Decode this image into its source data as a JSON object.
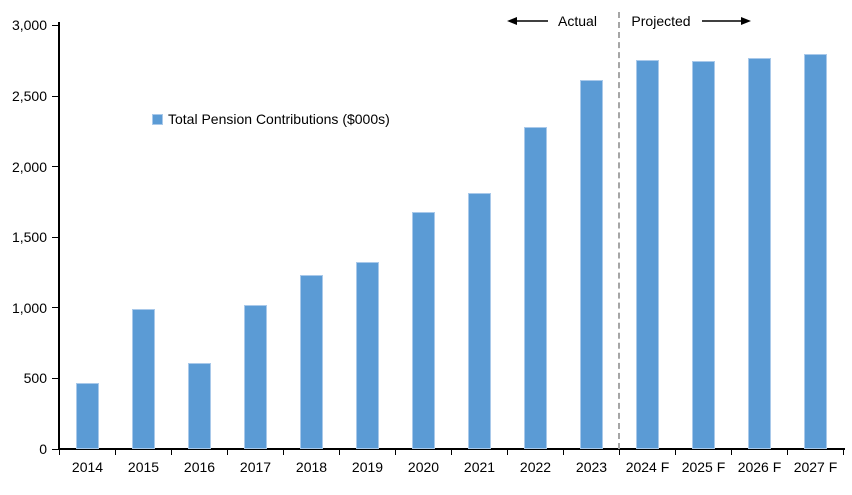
{
  "chart_data": {
    "type": "bar",
    "title": "",
    "legend": "Total Pension Contributions ($000s)",
    "categories": [
      "2014",
      "2015",
      "2016",
      "2017",
      "2018",
      "2019",
      "2020",
      "2021",
      "2022",
      "2023",
      "2024 F",
      "2025 F",
      "2026 F",
      "2027 F"
    ],
    "values": [
      470,
      990,
      610,
      1020,
      1235,
      1325,
      1680,
      1815,
      2280,
      2610,
      2755,
      2745,
      2770,
      2795
    ],
    "xlabel": "",
    "ylabel": "",
    "ylim": [
      0,
      3000
    ],
    "ytick_interval": 500,
    "ytick_labels": [
      "0",
      "500",
      "1,000",
      "1,500",
      "2,000",
      "2,500",
      "3,000"
    ],
    "grid": false,
    "legend_position": "inside-upper-left",
    "annotations": {
      "actual": "Actual",
      "projected": "Projected",
      "divider_between": [
        "2023",
        "2024 F"
      ]
    },
    "colors": {
      "bar_fill": "#5B9BD5",
      "bar_border": "#A9C9EA",
      "divider": "#A6A6A6",
      "axis": "#000000",
      "text": "#000000",
      "background": "#FFFFFF"
    }
  }
}
